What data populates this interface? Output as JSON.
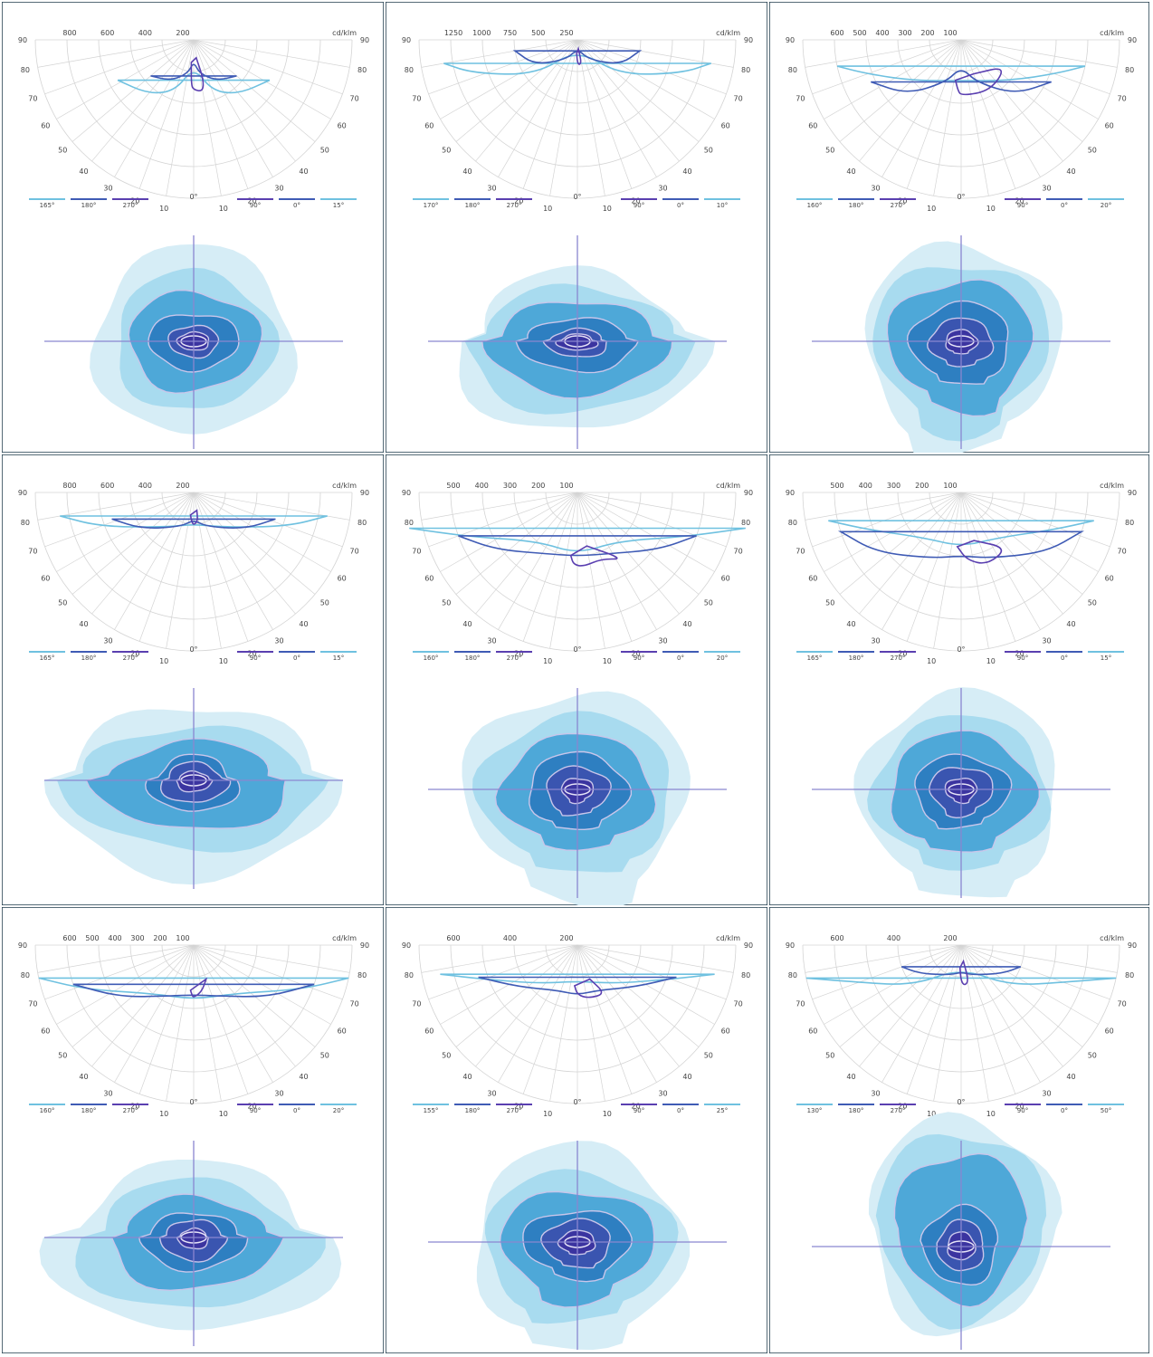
{
  "colors": {
    "border": "#1e3a4a",
    "grid": "#d4d4d4",
    "cplane_a": "#6fc1e0",
    "cplane_b": "#3f5bb5",
    "cplane_c": "#5a3fb0",
    "crosshair": "#8a86d0",
    "iso_levels": [
      "#d6edf6",
      "#a8dbef",
      "#4ea8d8",
      "#2e7fc1",
      "#3a55b0",
      "#3b34a0"
    ],
    "iso_line": "#c9c6ea"
  },
  "panels": [
    {
      "unit_label": "cd/klm",
      "radial_labels": [
        "800",
        "600",
        "400",
        "200"
      ],
      "angle_labels_left": [
        "90",
        "80",
        "70",
        "60",
        "50",
        "40",
        "30",
        "20",
        "10"
      ],
      "angle_labels_right": [
        "90",
        "80",
        "70",
        "60",
        "50",
        "40",
        "30",
        "20",
        "10"
      ],
      "center_label": "0°",
      "legend_left": [
        "165°",
        "180°",
        "270°"
      ],
      "legend_right": [
        "90°",
        "0°",
        "15°"
      ],
      "icons": [
        "polar-curve-diagram-icon",
        "isolux-diagram-icon"
      ]
    },
    {
      "unit_label": "cd/klm",
      "radial_labels": [
        "1250",
        "1000",
        "750",
        "500",
        "250"
      ],
      "angle_labels_left": [
        "90",
        "80",
        "70",
        "60",
        "50",
        "40",
        "30",
        "20",
        "10"
      ],
      "angle_labels_right": [
        "90",
        "80",
        "70",
        "60",
        "50",
        "40",
        "30",
        "20",
        "10"
      ],
      "center_label": "0°",
      "legend_left": [
        "170°",
        "180°",
        "270°"
      ],
      "legend_right": [
        "90°",
        "0°",
        "10°"
      ],
      "icons": [
        "polar-curve-diagram-icon",
        "isolux-diagram-icon"
      ]
    },
    {
      "unit_label": "cd/klm",
      "radial_labels": [
        "600",
        "500",
        "400",
        "300",
        "200",
        "100"
      ],
      "angle_labels_left": [
        "90",
        "80",
        "70",
        "60",
        "50",
        "40",
        "30",
        "20",
        "10"
      ],
      "angle_labels_right": [
        "90",
        "80",
        "70",
        "60",
        "50",
        "40",
        "30",
        "20",
        "10"
      ],
      "center_label": "0°",
      "legend_left": [
        "160°",
        "180°",
        "270°"
      ],
      "legend_right": [
        "90°",
        "0°",
        "20°"
      ],
      "icons": [
        "polar-curve-diagram-icon",
        "isolux-diagram-icon"
      ]
    },
    {
      "unit_label": "cd/klm",
      "radial_labels": [
        "800",
        "600",
        "400",
        "200"
      ],
      "angle_labels_left": [
        "90",
        "80",
        "70",
        "60",
        "50",
        "40",
        "30",
        "20",
        "10"
      ],
      "angle_labels_right": [
        "90",
        "80",
        "70",
        "60",
        "50",
        "40",
        "30",
        "20",
        "10"
      ],
      "center_label": "0°",
      "legend_left": [
        "165°",
        "180°",
        "270°"
      ],
      "legend_right": [
        "90°",
        "0°",
        "15°"
      ],
      "icons": [
        "polar-curve-diagram-icon",
        "isolux-diagram-icon"
      ]
    },
    {
      "unit_label": "cd/klm",
      "radial_labels": [
        "500",
        "400",
        "300",
        "200",
        "100"
      ],
      "angle_labels_left": [
        "90",
        "80",
        "70",
        "60",
        "50",
        "40",
        "30",
        "20",
        "10"
      ],
      "angle_labels_right": [
        "90",
        "80",
        "70",
        "60",
        "50",
        "40",
        "30",
        "20",
        "10"
      ],
      "center_label": "0°",
      "legend_left": [
        "160°",
        "180°",
        "270°"
      ],
      "legend_right": [
        "90°",
        "0°",
        "20°"
      ],
      "icons": [
        "polar-curve-diagram-icon",
        "isolux-diagram-icon"
      ]
    },
    {
      "unit_label": "cd/klm",
      "radial_labels": [
        "500",
        "400",
        "300",
        "200",
        "100"
      ],
      "angle_labels_left": [
        "90",
        "80",
        "70",
        "60",
        "50",
        "40",
        "30",
        "20",
        "10"
      ],
      "angle_labels_right": [
        "90",
        "80",
        "70",
        "60",
        "50",
        "40",
        "30",
        "20",
        "10"
      ],
      "center_label": "0°",
      "legend_left": [
        "165°",
        "180°",
        "270°"
      ],
      "legend_right": [
        "90°",
        "0°",
        "15°"
      ],
      "icons": [
        "polar-curve-diagram-icon",
        "isolux-diagram-icon"
      ]
    },
    {
      "unit_label": "cd/klm",
      "radial_labels": [
        "600",
        "500",
        "400",
        "300",
        "200",
        "100"
      ],
      "angle_labels_left": [
        "90",
        "80",
        "70",
        "60",
        "50",
        "40",
        "30",
        "20",
        "10"
      ],
      "angle_labels_right": [
        "90",
        "80",
        "70",
        "60",
        "50",
        "40",
        "30",
        "20",
        "10"
      ],
      "center_label": "0°",
      "legend_left": [
        "160°",
        "180°",
        "270°"
      ],
      "legend_right": [
        "90°",
        "0°",
        "20°"
      ],
      "icons": [
        "polar-curve-diagram-icon",
        "isolux-diagram-icon"
      ]
    },
    {
      "unit_label": "cd/klm",
      "radial_labels": [
        "600",
        "400",
        "200"
      ],
      "angle_labels_left": [
        "90",
        "80",
        "70",
        "60",
        "50",
        "40",
        "30",
        "20",
        "10"
      ],
      "angle_labels_right": [
        "90",
        "80",
        "70",
        "60",
        "50",
        "40",
        "30",
        "20",
        "10"
      ],
      "center_label": "0°",
      "legend_left": [
        "155°",
        "180°",
        "270°"
      ],
      "legend_right": [
        "90°",
        "0°",
        "25°"
      ],
      "icons": [
        "polar-curve-diagram-icon",
        "isolux-diagram-icon"
      ]
    },
    {
      "unit_label": "cd/klm",
      "radial_labels": [
        "600",
        "400",
        "200"
      ],
      "angle_labels_left": [
        "90",
        "80",
        "70",
        "60",
        "50",
        "40",
        "30",
        "20",
        "10"
      ],
      "angle_labels_right": [
        "90",
        "80",
        "70",
        "60",
        "50",
        "40",
        "30",
        "20",
        "10"
      ],
      "center_label": "0°",
      "legend_left": [
        "130°",
        "180°",
        "270°"
      ],
      "legend_right": [
        "90°",
        "0°",
        "50°"
      ],
      "icons": [
        "polar-curve-diagram-icon",
        "isolux-diagram-icon"
      ]
    }
  ]
}
